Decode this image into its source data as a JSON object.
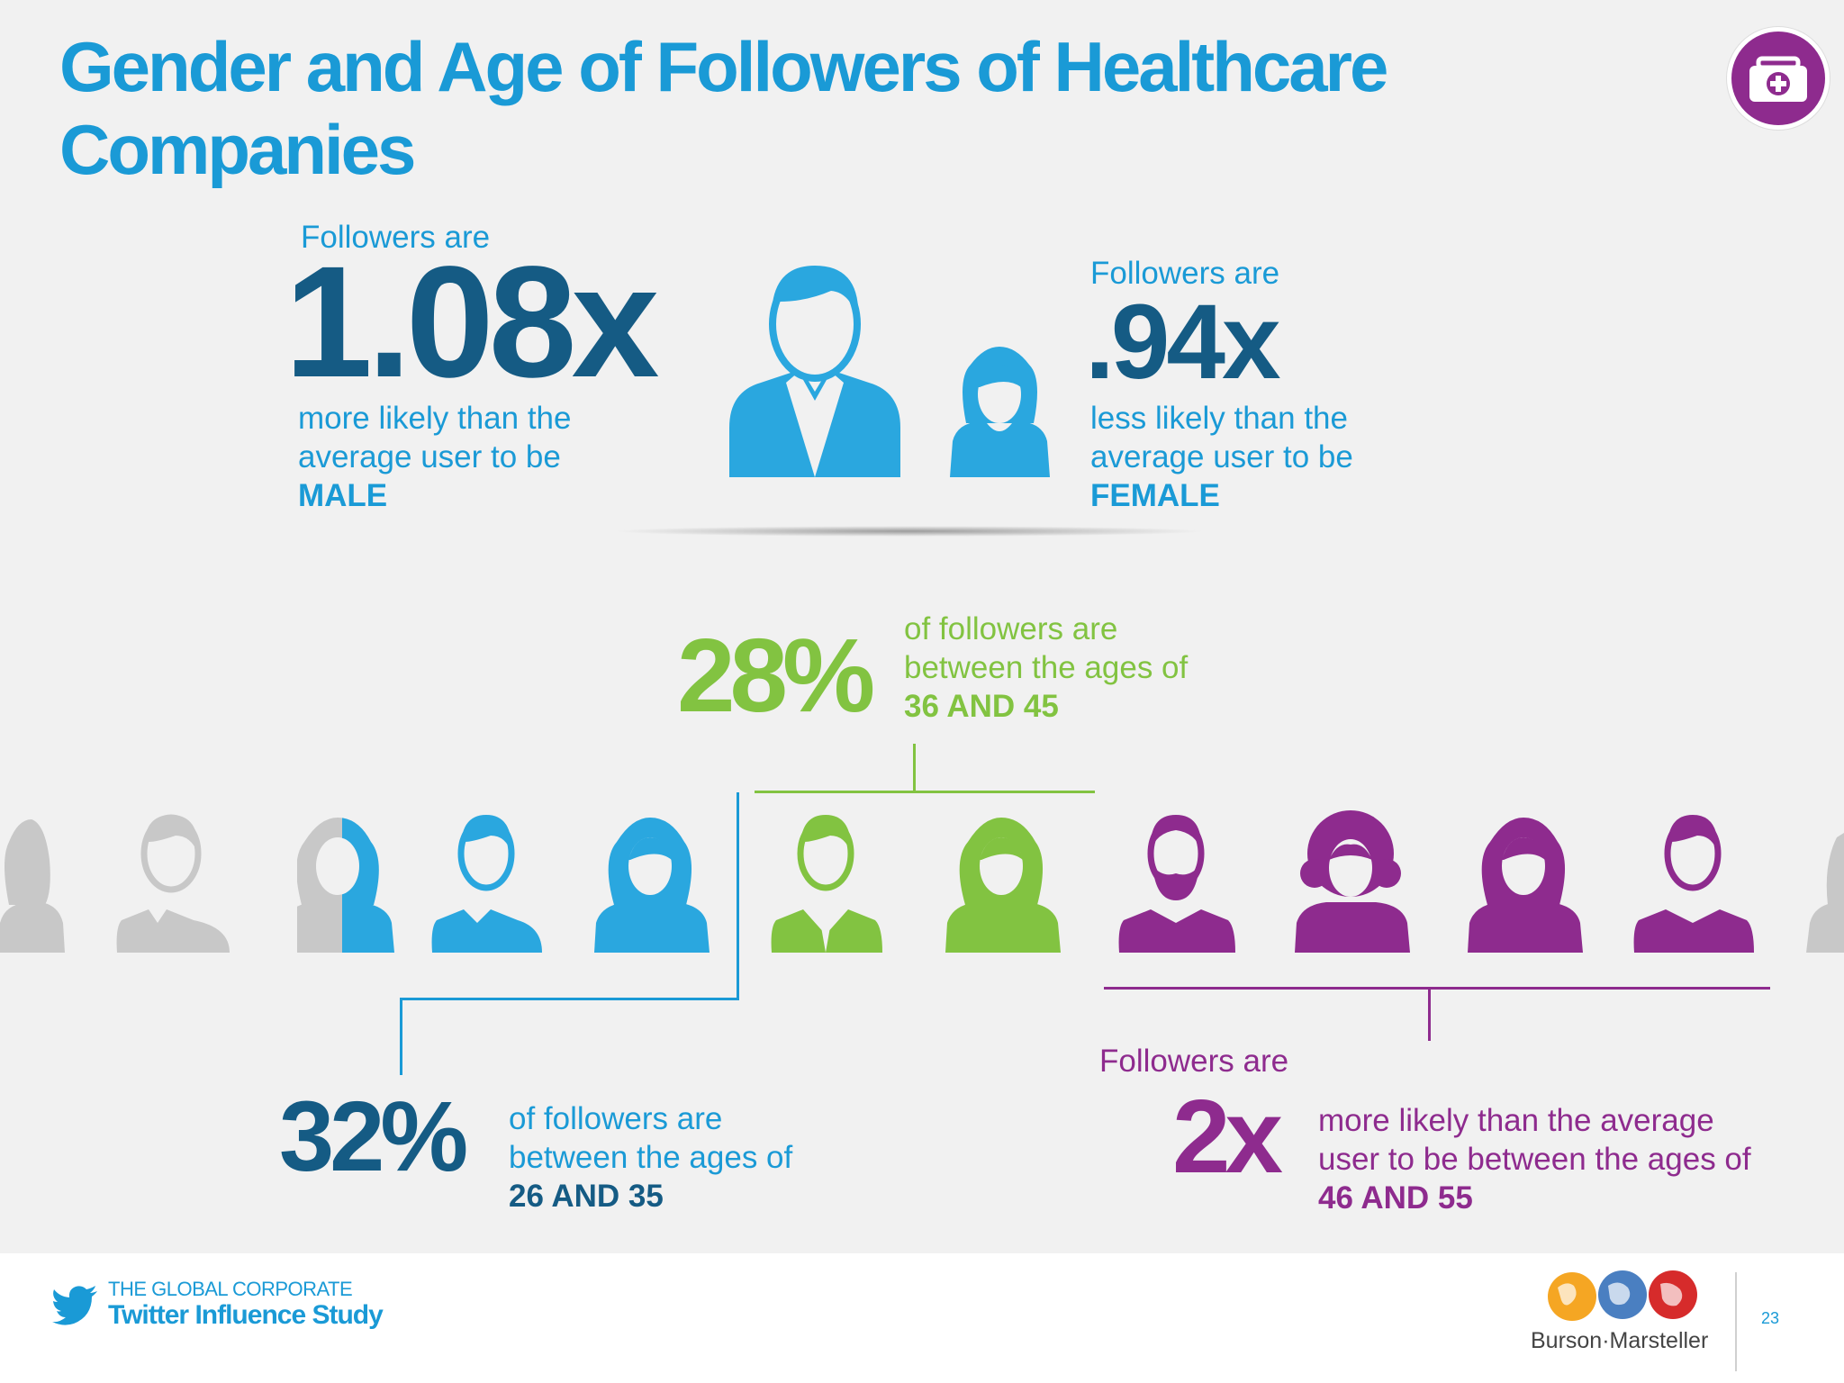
{
  "title": "Gender and Age of Followers of Healthcare Companies",
  "colors": {
    "blue": "#1a9ad6",
    "dark_blue": "#155b84",
    "green": "#82c341",
    "purple": "#8e2b8e",
    "grey": "#c8c8c8"
  },
  "male_stat": {
    "intro": "Followers are",
    "value": "1.08x",
    "desc_line1": "more likely than the",
    "desc_line2": "average user to be",
    "gender": "MALE"
  },
  "female_stat": {
    "intro": "Followers are",
    "value": ".94x",
    "desc_line1": "less likely than the",
    "desc_line2": "average user to be",
    "gender": "FEMALE"
  },
  "age_36_45": {
    "value": "28%",
    "line1": "of followers are",
    "line2": "between the ages of",
    "range": "36 AND 45"
  },
  "age_26_35": {
    "value": "32%",
    "line1": "of followers are",
    "line2": "between the ages of",
    "range": "26 AND 35"
  },
  "age_46_55": {
    "intro": "Followers are",
    "value": "2x",
    "line1": "more likely than the average",
    "line2": "user to be between the ages of",
    "range": "46 AND 55"
  },
  "footer": {
    "study_line1": "THE GLOBAL CORPORATE",
    "study_line2": "Twitter Influence Study",
    "brand": "Burson·Marsteller",
    "page_number": "23"
  },
  "icons": [
    "briefcase-medical-icon",
    "twitter-bird-icon",
    "globe-icon",
    "person-icon"
  ]
}
